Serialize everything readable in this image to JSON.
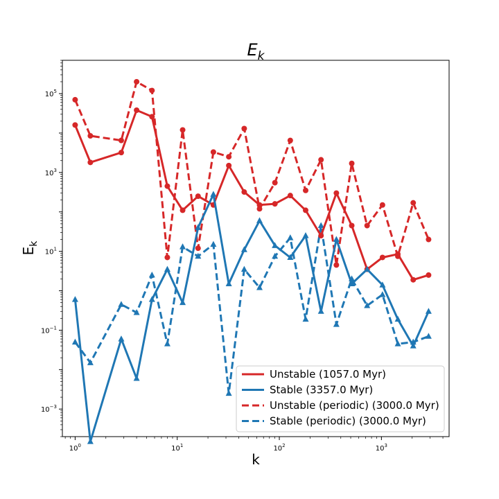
{
  "chart_data": {
    "type": "line",
    "title": "E_k",
    "xlabel": "k",
    "ylabel": "E_k",
    "xscale": "log",
    "yscale": "log",
    "xlim": [
      0.75,
      4600
    ],
    "ylim": [
      0.0002,
      700000
    ],
    "xticks": [
      {
        "value": 1,
        "base": "10",
        "exp": "0"
      },
      {
        "value": 10,
        "base": "10",
        "exp": "1"
      },
      {
        "value": 100,
        "base": "10",
        "exp": "2"
      },
      {
        "value": 1000,
        "base": "10",
        "exp": "3"
      }
    ],
    "yticks": [
      {
        "value": 0.001,
        "base": "10",
        "exp": "−3"
      },
      {
        "value": 0.1,
        "base": "10",
        "exp": "−1"
      },
      {
        "value": 10,
        "base": "10",
        "exp": "1"
      },
      {
        "value": 1000,
        "base": "10",
        "exp": "3"
      },
      {
        "value": 100000,
        "base": "10",
        "exp": "5"
      }
    ],
    "legend_position": "lower-right",
    "series": [
      {
        "name": "Unstable (1057.0 Myr)",
        "color": "#d62728",
        "linestyle": "solid",
        "marker": "circle",
        "x": [
          1,
          1.41,
          2.83,
          4,
          5.66,
          8,
          11.3,
          16,
          22.6,
          32,
          45.3,
          64,
          90.5,
          128,
          181,
          256,
          362,
          512,
          724,
          1024,
          1448,
          2048,
          2896
        ],
        "y": [
          16000,
          1800,
          3200,
          38000,
          26000,
          450,
          110,
          250,
          150,
          1500,
          320,
          150,
          160,
          260,
          110,
          25,
          300,
          45,
          3.5,
          7,
          8.5,
          1.9,
          2.5
        ]
      },
      {
        "name": "Stable (3357.0 Myr)",
        "color": "#1f77b4",
        "linestyle": "solid",
        "marker": "triangle",
        "x": [
          1,
          1.41,
          2.83,
          4,
          5.66,
          8,
          11.3,
          16,
          22.6,
          32,
          45.3,
          64,
          90.5,
          128,
          181,
          256,
          362,
          512,
          724,
          1024,
          1448,
          2048,
          2896
        ],
        "y": [
          0.6,
          0.00015,
          0.06,
          0.006,
          0.6,
          3.5,
          0.5,
          40,
          280,
          1.5,
          11,
          60,
          14,
          7,
          25,
          0.3,
          20,
          1.5,
          3.5,
          1.4,
          0.19,
          0.04,
          0.3
        ]
      },
      {
        "name": "Unstable (periodic) (3000.0 Myr)",
        "color": "#d62728",
        "linestyle": "dashed",
        "marker": "circle",
        "x": [
          1,
          1.41,
          2.83,
          4,
          5.66,
          8,
          11.3,
          16,
          22.6,
          32,
          45.3,
          64,
          90.5,
          128,
          181,
          256,
          362,
          512,
          724,
          1024,
          1448,
          2048,
          2896
        ],
        "y": [
          70000,
          8500,
          6500,
          200000,
          120000,
          7,
          12000,
          12,
          3300,
          2500,
          13000,
          120,
          550,
          6500,
          350,
          2100,
          4.5,
          1700,
          45,
          150,
          7.5,
          170,
          20
        ]
      },
      {
        "name": "Stable (periodic) (3000.0 Myr)",
        "color": "#1f77b4",
        "linestyle": "dashed",
        "marker": "triangle",
        "x": [
          1,
          1.41,
          2.83,
          4,
          5.66,
          8,
          11.3,
          16,
          22.6,
          32,
          45.3,
          64,
          90.5,
          128,
          181,
          256,
          362,
          512,
          724,
          1024,
          1448,
          2048,
          2896
        ],
        "y": [
          0.05,
          0.015,
          0.45,
          0.28,
          2.5,
          0.045,
          13,
          7.5,
          15,
          0.0025,
          3.5,
          1.2,
          7.5,
          22,
          0.19,
          45,
          0.14,
          2,
          0.42,
          0.8,
          0.045,
          0.05,
          0.07
        ]
      }
    ]
  }
}
